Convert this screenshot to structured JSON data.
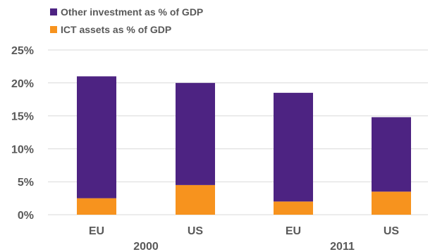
{
  "chart_data": {
    "type": "bar",
    "stacked": true,
    "categories": [
      "EU",
      "US",
      "EU",
      "US"
    ],
    "groups": [
      {
        "label": "2000",
        "categories": [
          0,
          1
        ]
      },
      {
        "label": "2011",
        "categories": [
          2,
          3
        ]
      }
    ],
    "series": [
      {
        "name": "ICT assets as % of GDP",
        "color": "#F7931E",
        "values": [
          2.5,
          4.5,
          2.0,
          3.5
        ]
      },
      {
        "name": "Other investment as % of GDP",
        "color": "#4D2382",
        "values": [
          18.5,
          15.5,
          16.5,
          11.3
        ]
      }
    ],
    "legend": [
      {
        "name": "Other investment as % of GDP",
        "color": "#4D2382"
      },
      {
        "name": "ICT assets as % of GDP",
        "color": "#F7931E"
      }
    ],
    "legend_position": "top-left",
    "ylim": [
      0,
      25
    ],
    "yticks": [
      {
        "value": 0,
        "label": "0%"
      },
      {
        "value": 5,
        "label": "5%"
      },
      {
        "value": 10,
        "label": "10%"
      },
      {
        "value": 15,
        "label": "15%"
      },
      {
        "value": 20,
        "label": "20%"
      },
      {
        "value": 25,
        "label": "25%"
      }
    ],
    "grid": true,
    "gridline_color": "#D9D9D9"
  }
}
